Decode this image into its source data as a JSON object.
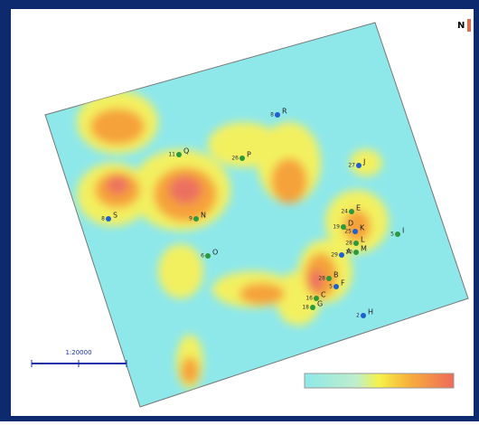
{
  "north": "N",
  "scale": "1:20000",
  "wells": [
    {
      "name": "R",
      "number": "8"
    },
    {
      "name": "Q",
      "number": "11"
    },
    {
      "name": "P",
      "number": "26"
    },
    {
      "name": "J",
      "number": "27"
    },
    {
      "name": "E",
      "number": "24"
    },
    {
      "name": "D",
      "number": "19"
    },
    {
      "name": "K",
      "number": "25"
    },
    {
      "name": "I",
      "number": "5"
    },
    {
      "name": "N",
      "number": "9"
    },
    {
      "name": "S",
      "number": "8"
    },
    {
      "name": "L",
      "number": "28"
    },
    {
      "name": "M",
      "number": "30"
    },
    {
      "name": "A",
      "number": "29"
    },
    {
      "name": "O",
      "number": "6"
    },
    {
      "name": "B",
      "number": "28"
    },
    {
      "name": "F",
      "number": "5"
    },
    {
      "name": "C",
      "number": "16"
    },
    {
      "name": "G",
      "number": "18"
    },
    {
      "name": "H",
      "number": "2"
    }
  ]
}
